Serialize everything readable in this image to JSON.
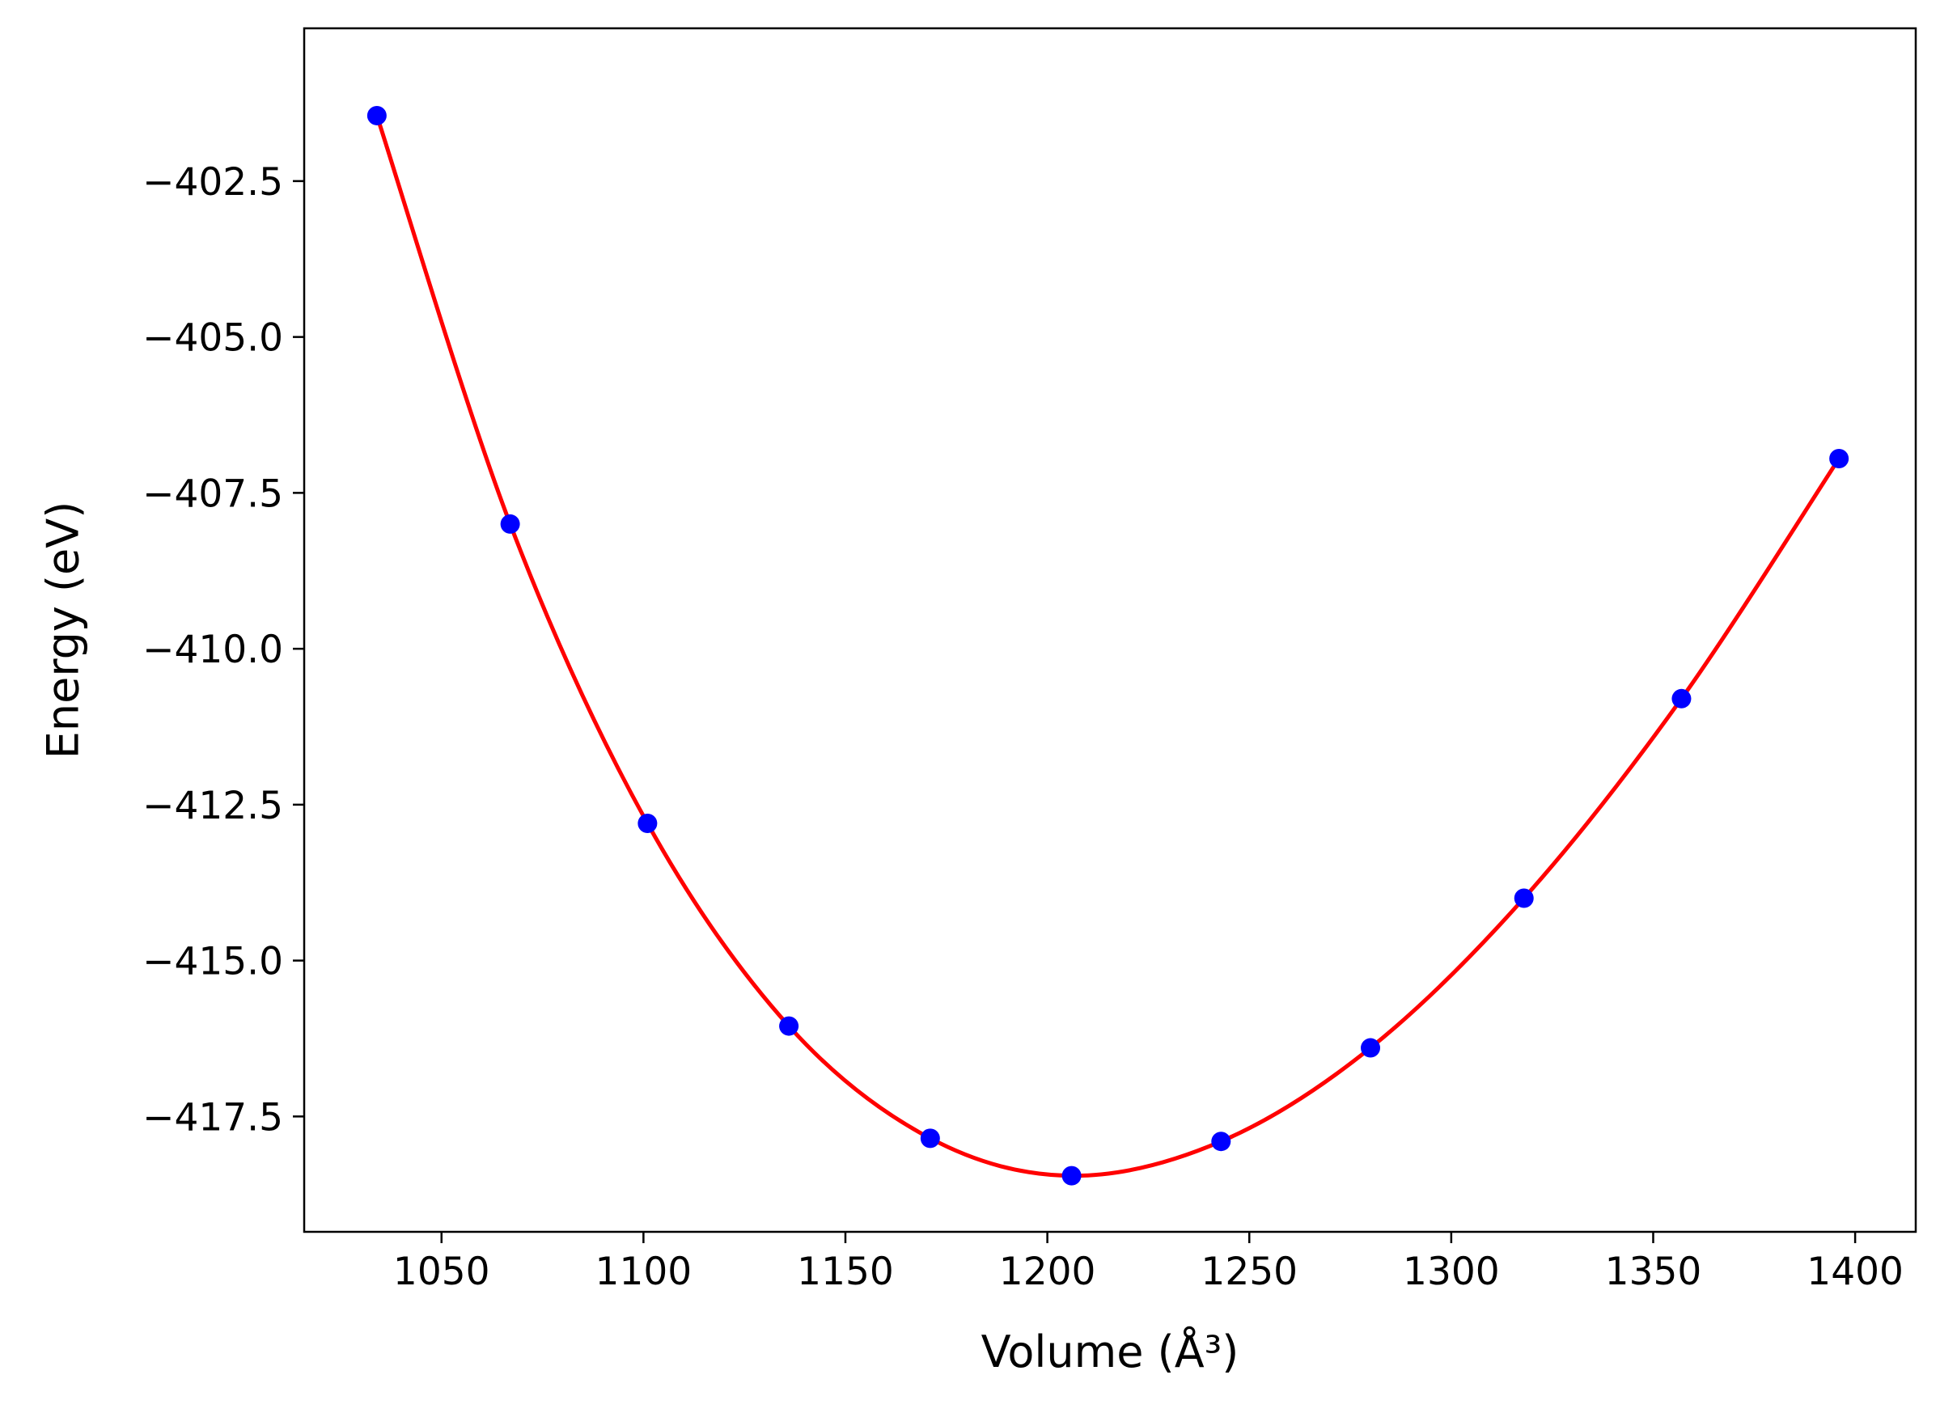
{
  "chart_data": {
    "type": "scatter",
    "xlabel": "Volume (Å³)",
    "ylabel": "Energy (eV)",
    "xlim": [
      1016,
      1415
    ],
    "ylim": [
      -419.35,
      -400.05
    ],
    "x_ticks": [
      1050,
      1100,
      1150,
      1200,
      1250,
      1300,
      1350,
      1400
    ],
    "x_tick_labels": [
      "1050",
      "1100",
      "1150",
      "1200",
      "1250",
      "1300",
      "1350",
      "1400"
    ],
    "y_ticks": [
      -402.5,
      -405.0,
      -407.5,
      -410.0,
      -412.5,
      -415.0,
      -417.5
    ],
    "y_tick_labels": [
      "−402.5",
      "−405.0",
      "−407.5",
      "−410.0",
      "−412.5",
      "−415.0",
      "−417.5"
    ],
    "grid": false,
    "legend": "none",
    "series": [
      {
        "kind": "points",
        "color": "#0000ff",
        "x": [
          1034,
          1067,
          1101,
          1136,
          1171,
          1206,
          1243,
          1280,
          1318,
          1357,
          1396
        ],
        "y": [
          -401.45,
          -408.0,
          -412.8,
          -416.05,
          -417.85,
          -418.45,
          -417.9,
          -416.4,
          -414.0,
          -410.8,
          -406.95
        ]
      },
      {
        "kind": "fit-curve",
        "color": "#ff0000",
        "x": [
          1034,
          1067,
          1101,
          1136,
          1171,
          1206,
          1243,
          1280,
          1318,
          1357,
          1396
        ],
        "y": [
          -401.45,
          -408.0,
          -412.8,
          -416.05,
          -417.85,
          -418.45,
          -417.9,
          -416.4,
          -414.0,
          -410.8,
          -406.95
        ]
      }
    ]
  }
}
